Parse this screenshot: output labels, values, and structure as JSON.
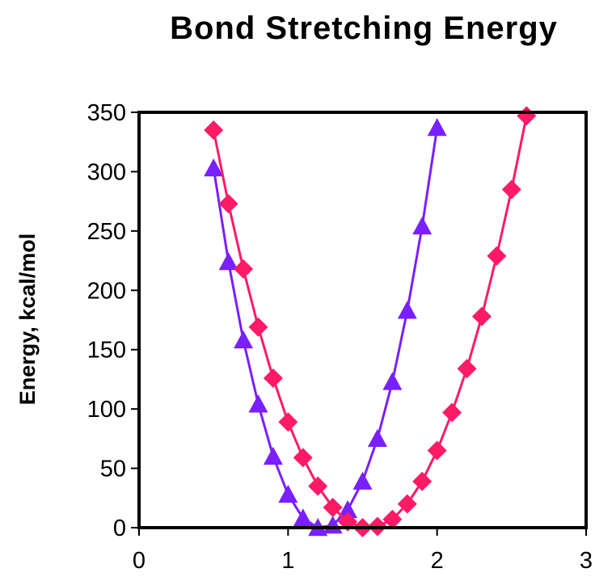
{
  "chart_data": {
    "type": "line",
    "title": "Bond Stretching Energy",
    "xlabel": "",
    "ylabel": "Energy, kcal/mol",
    "xlim": [
      0,
      3
    ],
    "ylim": [
      0,
      350
    ],
    "xticks": [
      "0",
      "1",
      "2",
      "3"
    ],
    "yticks": [
      "0",
      "50",
      "100",
      "150",
      "200",
      "250",
      "300",
      "350"
    ],
    "grid": false,
    "legend": "none",
    "series": [
      {
        "marker": "triangle",
        "color": "#7a1fff",
        "x": [
          0.5,
          0.6,
          0.7,
          0.8,
          0.9,
          1.0,
          1.1,
          1.2,
          1.3,
          1.4,
          1.5,
          1.6,
          1.7,
          1.8,
          1.9,
          2.0
        ],
        "y": [
          303,
          224,
          158,
          104,
          60,
          28,
          8,
          0,
          2,
          15,
          39,
          75,
          123,
          183,
          254,
          337
        ]
      },
      {
        "marker": "diamond",
        "color": "#ff1a66",
        "x": [
          0.5,
          0.6,
          0.7,
          0.8,
          0.9,
          1.0,
          1.1,
          1.2,
          1.3,
          1.4,
          1.5,
          1.6,
          1.7,
          1.8,
          1.9,
          2.0,
          2.1,
          2.2,
          2.3,
          2.4,
          2.5,
          2.6
        ],
        "y": [
          335,
          273,
          218,
          169,
          126,
          89,
          59,
          35,
          17,
          5,
          0,
          1,
          7,
          20,
          39,
          65,
          97,
          134,
          178,
          229,
          285,
          347
        ]
      }
    ]
  }
}
